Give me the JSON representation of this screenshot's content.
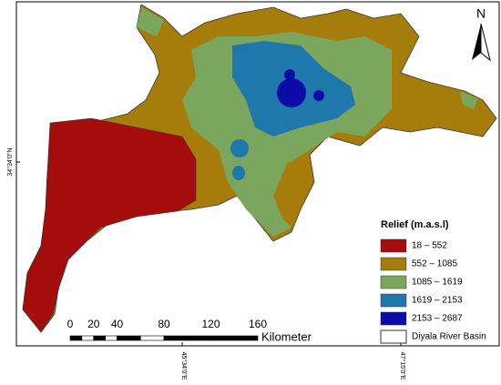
{
  "map": {
    "north_arrow": "N",
    "lat_label": "34°34'0\"N",
    "lon_labels": [
      "45°34'0\"E",
      "47°15'0\"E"
    ],
    "legend": {
      "title": "Relief (m.a.s.l)",
      "items": [
        {
          "label": "18 – 552",
          "color": "#a50d0d"
        },
        {
          "label": "552 – 1085",
          "color": "#a67d0b"
        },
        {
          "label": "1085 – 1619",
          "color": "#7ba65d"
        },
        {
          "label": "1619 – 2153",
          "color": "#1f78ab"
        },
        {
          "label": "2153 – 2687",
          "color": "#0b0ba8"
        }
      ],
      "boundary": "Diyala River Basin"
    },
    "scale_bar": {
      "labels": [
        "0",
        "20",
        "40",
        "80",
        "120",
        "160"
      ],
      "unit": "Kilometer"
    }
  }
}
